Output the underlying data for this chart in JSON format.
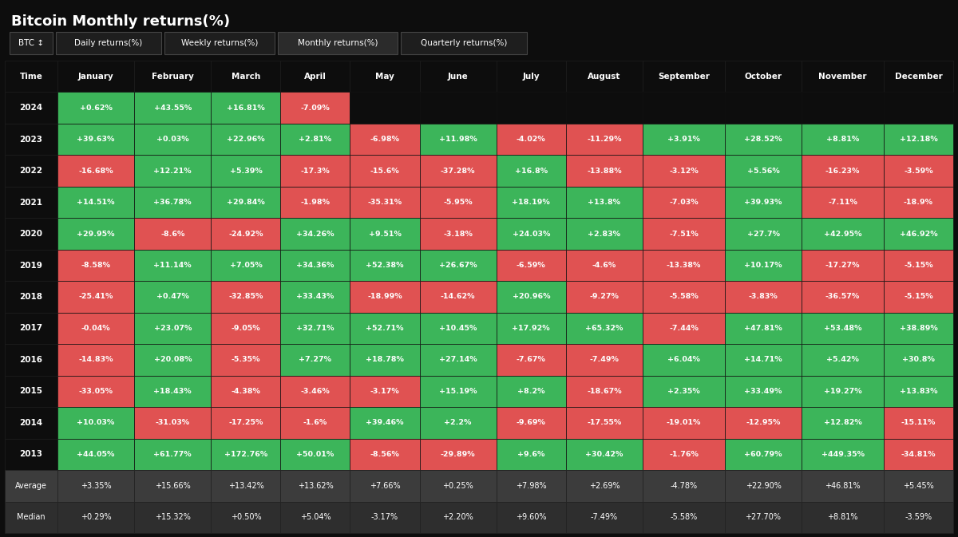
{
  "title": "Bitcoin Monthly returns(%)",
  "background_color": "#0d0d0d",
  "green_color": "#3cb55a",
  "red_color": "#e05252",
  "text_color": "#ffffff",
  "months": [
    "January",
    "February",
    "March",
    "April",
    "May",
    "June",
    "July",
    "August",
    "September",
    "October",
    "November",
    "December"
  ],
  "years": [
    "2024",
    "2023",
    "2022",
    "2021",
    "2020",
    "2019",
    "2018",
    "2017",
    "2016",
    "2015",
    "2014",
    "2013"
  ],
  "data": {
    "2024": [
      0.62,
      43.55,
      16.81,
      -7.09,
      null,
      null,
      null,
      null,
      null,
      null,
      null,
      null
    ],
    "2023": [
      39.63,
      0.03,
      22.96,
      2.81,
      -6.98,
      11.98,
      -4.02,
      -11.29,
      3.91,
      28.52,
      8.81,
      12.18
    ],
    "2022": [
      -16.68,
      12.21,
      5.39,
      -17.3,
      -15.6,
      -37.28,
      16.8,
      -13.88,
      -3.12,
      5.56,
      -16.23,
      -3.59
    ],
    "2021": [
      14.51,
      36.78,
      29.84,
      -1.98,
      -35.31,
      -5.95,
      18.19,
      13.8,
      -7.03,
      39.93,
      -7.11,
      -18.9
    ],
    "2020": [
      29.95,
      -8.6,
      -24.92,
      34.26,
      9.51,
      -3.18,
      24.03,
      2.83,
      -7.51,
      27.7,
      42.95,
      46.92
    ],
    "2019": [
      -8.58,
      11.14,
      7.05,
      34.36,
      52.38,
      26.67,
      -6.59,
      -4.6,
      -13.38,
      10.17,
      -17.27,
      -5.15
    ],
    "2018": [
      -25.41,
      0.47,
      -32.85,
      33.43,
      -18.99,
      -14.62,
      20.96,
      -9.27,
      -5.58,
      -3.83,
      -36.57,
      -5.15
    ],
    "2017": [
      -0.04,
      23.07,
      -9.05,
      32.71,
      52.71,
      10.45,
      17.92,
      65.32,
      -7.44,
      47.81,
      53.48,
      38.89
    ],
    "2016": [
      -14.83,
      20.08,
      -5.35,
      7.27,
      18.78,
      27.14,
      -7.67,
      -7.49,
      6.04,
      14.71,
      5.42,
      30.8
    ],
    "2015": [
      -33.05,
      18.43,
      -4.38,
      -3.46,
      -3.17,
      15.19,
      8.2,
      -18.67,
      2.35,
      33.49,
      19.27,
      13.83
    ],
    "2014": [
      10.03,
      -31.03,
      -17.25,
      -1.6,
      39.46,
      2.2,
      -9.69,
      -17.55,
      -19.01,
      -12.95,
      12.82,
      -15.11
    ],
    "2013": [
      44.05,
      61.77,
      172.76,
      50.01,
      -8.56,
      -29.89,
      9.6,
      30.42,
      -1.76,
      60.79,
      449.35,
      -34.81
    ]
  },
  "display_data": {
    "2024": [
      "+0.62%",
      "+43.55%",
      "+16.81%",
      "-7.09%",
      "",
      "",
      "",
      "",
      "",
      "",
      "",
      ""
    ],
    "2023": [
      "+39.63%",
      "+0.03%",
      "+22.96%",
      "+2.81%",
      "-6.98%",
      "+11.98%",
      "-4.02%",
      "-11.29%",
      "+3.91%",
      "+28.52%",
      "+8.81%",
      "+12.18%"
    ],
    "2022": [
      "-16.68%",
      "+12.21%",
      "+5.39%",
      "-17.3%",
      "-15.6%",
      "-37.28%",
      "+16.8%",
      "-13.88%",
      "-3.12%",
      "+5.56%",
      "-16.23%",
      "-3.59%"
    ],
    "2021": [
      "+14.51%",
      "+36.78%",
      "+29.84%",
      "-1.98%",
      "-35.31%",
      "-5.95%",
      "+18.19%",
      "+13.8%",
      "-7.03%",
      "+39.93%",
      "-7.11%",
      "-18.9%"
    ],
    "2020": [
      "+29.95%",
      "-8.6%",
      "-24.92%",
      "+34.26%",
      "+9.51%",
      "-3.18%",
      "+24.03%",
      "+2.83%",
      "-7.51%",
      "+27.7%",
      "+42.95%",
      "+46.92%"
    ],
    "2019": [
      "-8.58%",
      "+11.14%",
      "+7.05%",
      "+34.36%",
      "+52.38%",
      "+26.67%",
      "-6.59%",
      "-4.6%",
      "-13.38%",
      "+10.17%",
      "-17.27%",
      "-5.15%"
    ],
    "2018": [
      "-25.41%",
      "+0.47%",
      "-32.85%",
      "+33.43%",
      "-18.99%",
      "-14.62%",
      "+20.96%",
      "-9.27%",
      "-5.58%",
      "-3.83%",
      "-36.57%",
      "-5.15%"
    ],
    "2017": [
      "-0.04%",
      "+23.07%",
      "-9.05%",
      "+32.71%",
      "+52.71%",
      "+10.45%",
      "+17.92%",
      "+65.32%",
      "-7.44%",
      "+47.81%",
      "+53.48%",
      "+38.89%"
    ],
    "2016": [
      "-14.83%",
      "+20.08%",
      "-5.35%",
      "+7.27%",
      "+18.78%",
      "+27.14%",
      "-7.67%",
      "-7.49%",
      "+6.04%",
      "+14.71%",
      "+5.42%",
      "+30.8%"
    ],
    "2015": [
      "-33.05%",
      "+18.43%",
      "-4.38%",
      "-3.46%",
      "-3.17%",
      "+15.19%",
      "+8.2%",
      "-18.67%",
      "+2.35%",
      "+33.49%",
      "+19.27%",
      "+13.83%"
    ],
    "2014": [
      "+10.03%",
      "-31.03%",
      "-17.25%",
      "-1.6%",
      "+39.46%",
      "+2.2%",
      "-9.69%",
      "-17.55%",
      "-19.01%",
      "-12.95%",
      "+12.82%",
      "-15.11%"
    ],
    "2013": [
      "+44.05%",
      "+61.77%",
      "+172.76%",
      "+50.01%",
      "-8.56%",
      "-29.89%",
      "+9.6%",
      "+30.42%",
      "-1.76%",
      "+60.79%",
      "+449.35%",
      "-34.81%"
    ]
  },
  "average": [
    "+3.35%",
    "+15.66%",
    "+13.42%",
    "+13.62%",
    "+7.66%",
    "+0.25%",
    "+7.98%",
    "+2.69%",
    "-4.78%",
    "+22.90%",
    "+46.81%",
    "+5.45%"
  ],
  "median": [
    "+0.29%",
    "+15.32%",
    "+0.50%",
    "+5.04%",
    "-3.17%",
    "+2.20%",
    "+9.60%",
    "-7.49%",
    "-5.58%",
    "+27.70%",
    "+8.81%",
    "-3.59%"
  ]
}
